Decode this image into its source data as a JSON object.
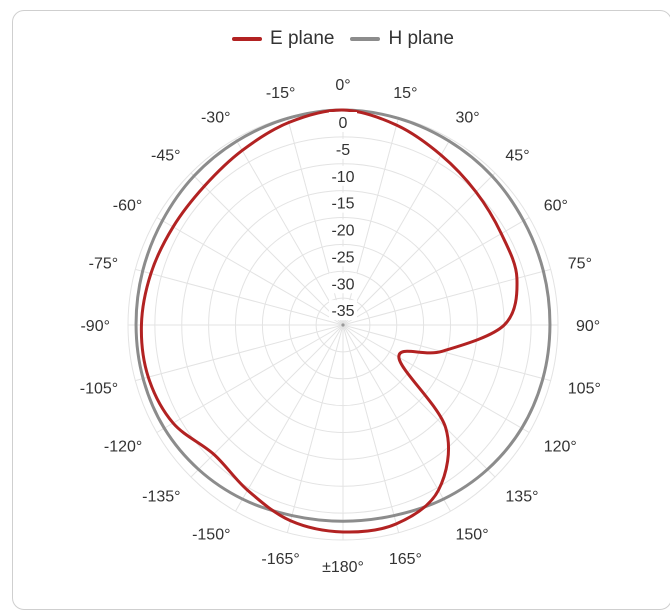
{
  "legend": {
    "e_label": "E plane",
    "h_label": "H plane"
  },
  "colors": {
    "e_plane": "#b22222",
    "h_plane": "#8c8c8c",
    "grid": "#e3e3e3"
  },
  "chart_data": {
    "type": "polar-line",
    "title": "",
    "legend_position": "top-center",
    "grid": true,
    "radial_axis": {
      "unit": "dB",
      "range": [
        -40,
        0
      ],
      "tick_values": [
        0,
        -5,
        -10,
        -15,
        -20,
        -25,
        -30,
        -35
      ],
      "tick_labels": [
        "0",
        "-5",
        "-10",
        "-15",
        "-20",
        "-25",
        "-30",
        "-35"
      ]
    },
    "angular_axis": {
      "unit": "deg",
      "direction": "clockwise",
      "zero_at": "top",
      "tick_values": [
        0,
        15,
        30,
        45,
        60,
        75,
        90,
        105,
        120,
        135,
        150,
        165,
        180,
        -165,
        -150,
        -135,
        -120,
        -105,
        -90,
        -75,
        -60,
        -45,
        -30,
        -15
      ],
      "tick_labels": [
        "0°",
        "15°",
        "30°",
        "45°",
        "60°",
        "75°",
        "90°",
        "105°",
        "120°",
        "135°",
        "150°",
        "165°",
        "±180°",
        "-165°",
        "-150°",
        "-135°",
        "-120°",
        "-105°",
        "-90°",
        "-75°",
        "-60°",
        "-45°",
        "-30°",
        "-15°"
      ]
    },
    "series": [
      {
        "name": "E plane",
        "theta": [
          0,
          15,
          30,
          45,
          60,
          75,
          90,
          105,
          120,
          135,
          150,
          165,
          180,
          -165,
          -150,
          -135,
          -120,
          -105,
          -90,
          -75,
          -60,
          -45,
          -30,
          -15
        ],
        "r": [
          0,
          -1.5,
          -3.5,
          -5,
          -6,
          -6.5,
          -10,
          -21,
          -28,
          -13,
          -4.5,
          -1.7,
          -1.5,
          -2.3,
          -4.5,
          -6,
          -3.5,
          -2.5,
          -2.5,
          -3,
          -3.5,
          -3.5,
          -2.5,
          -1
        ]
      },
      {
        "name": "H plane",
        "theta": [
          0,
          15,
          30,
          45,
          60,
          75,
          90,
          105,
          120,
          135,
          150,
          165,
          180,
          -165,
          -150,
          -135,
          -120,
          -105,
          -90,
          -75,
          -60,
          -45,
          -30,
          -15
        ],
        "r": [
          0,
          -0.2,
          -0.5,
          -0.8,
          -1.2,
          -1.4,
          -1.5,
          -1.5,
          -1.6,
          -2.0,
          -2.6,
          -3.3,
          -3.5,
          -3.3,
          -2.6,
          -2.0,
          -1.6,
          -1.5,
          -1.5,
          -1.4,
          -1.2,
          -0.8,
          -0.5,
          -0.2
        ]
      }
    ]
  }
}
